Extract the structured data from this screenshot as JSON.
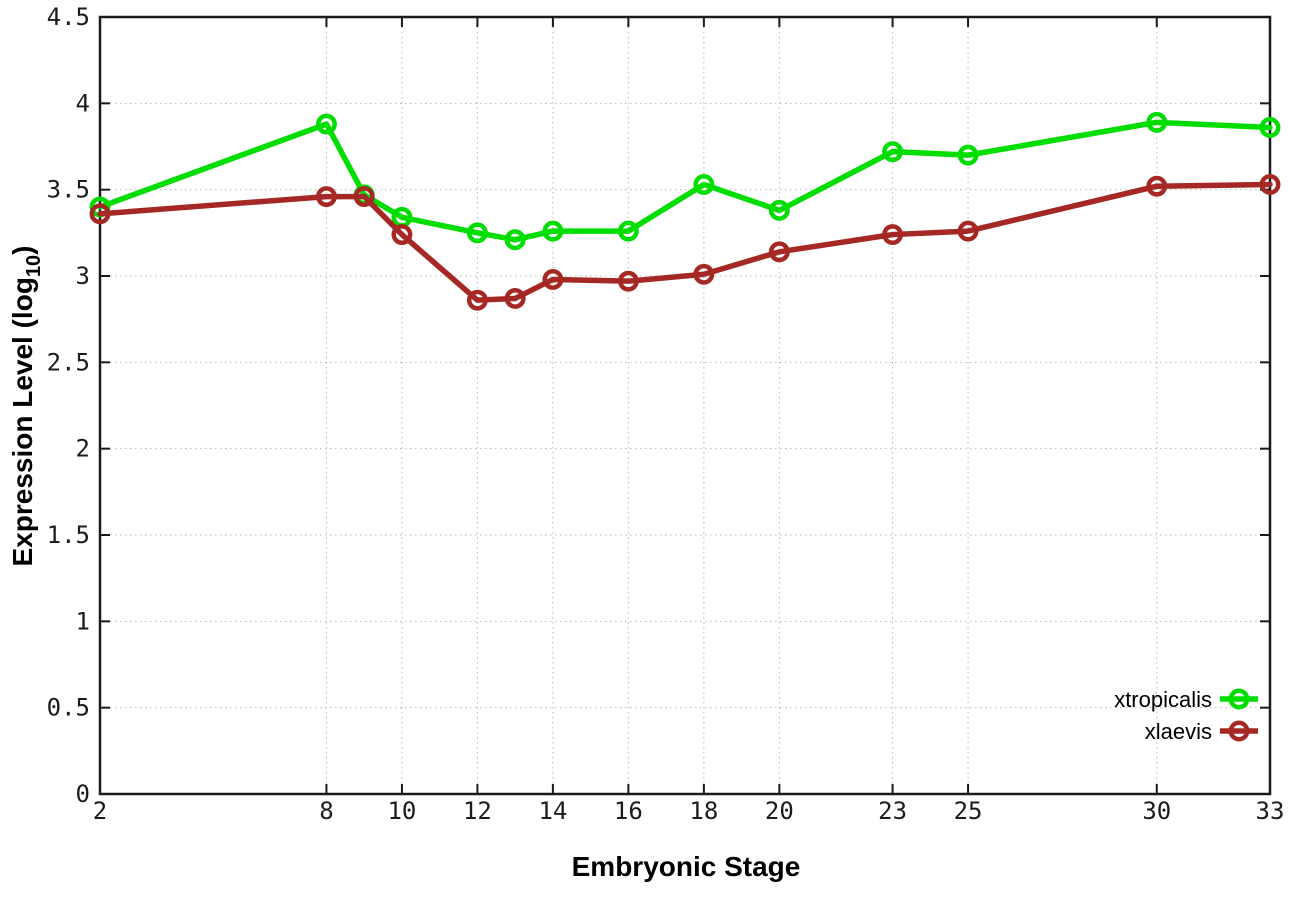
{
  "page": {
    "background": "#ffffff"
  },
  "labels": {
    "xlabel": "Embryonic Stage",
    "ylabel_prefix": "Expression Level (log",
    "ylabel_sub": "10",
    "ylabel_suffix": ")"
  },
  "style": {
    "axis_color": "#1a1a1a",
    "grid_color": "#b8b8b8",
    "tick_label_color": "#1c1c1c"
  },
  "chart_data": {
    "type": "line",
    "title": "",
    "xlabel": "Embryonic Stage",
    "ylabel": "Expression Level (log10)",
    "x": [
      2,
      8,
      9,
      10,
      12,
      13,
      14,
      16,
      18,
      20,
      23,
      25,
      30,
      33
    ],
    "xticks": [
      2,
      8,
      10,
      12,
      14,
      16,
      18,
      20,
      23,
      25,
      30,
      33
    ],
    "xlim": [
      2,
      33
    ],
    "ylim": [
      0,
      4.5
    ],
    "ytick_step": 0.5,
    "grid": true,
    "grid_style": "dotted",
    "legend_position": "bottom-right",
    "marker": "open-circle",
    "series": [
      {
        "name": "xtropicalis",
        "color": "#00dd00",
        "values": [
          3.4,
          3.88,
          3.47,
          3.34,
          3.25,
          3.21,
          3.26,
          3.26,
          3.53,
          3.38,
          3.72,
          3.7,
          3.89,
          3.86
        ]
      },
      {
        "name": "xlaevis",
        "color": "#a52824",
        "values": [
          3.36,
          3.46,
          3.46,
          3.24,
          2.86,
          2.87,
          2.98,
          2.97,
          3.01,
          3.14,
          3.24,
          3.26,
          3.52,
          3.53
        ]
      }
    ]
  }
}
